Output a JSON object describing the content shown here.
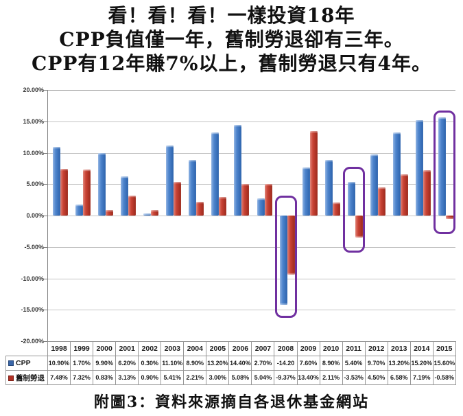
{
  "title": {
    "line1": "看！看！看！一樣投資18年",
    "line2": "CPP負值僅一年，舊制勞退卻有三年。",
    "line3": "CPP有12年賺7%以上，舊制勞退只有4年。"
  },
  "caption": "附圖3：資料來源摘自各退休基金網站",
  "chart_data": {
    "type": "bar",
    "categories": [
      "1998",
      "1999",
      "2000",
      "2001",
      "2002",
      "2003",
      "2004",
      "2005",
      "2006",
      "2007",
      "2008",
      "2009",
      "2010",
      "2011",
      "2012",
      "2013",
      "2014",
      "2015"
    ],
    "series": [
      {
        "name": "CPP",
        "color": "#3f76c0",
        "values": [
          10.9,
          1.7,
          9.9,
          6.2,
          0.3,
          11.1,
          8.9,
          13.2,
          14.4,
          2.7,
          -14.2,
          7.6,
          8.9,
          5.4,
          9.7,
          13.2,
          15.2,
          15.6
        ],
        "display": [
          "10.90%",
          "1.70%",
          "9.90%",
          "6.20%",
          "0.30%",
          "11.10%",
          "8.90%",
          "13.20%",
          "14.40%",
          "2.70%",
          "-14.20",
          "7.60%",
          "8.90%",
          "5.40%",
          "9.70%",
          "13.20%",
          "15.20%",
          "15.60%"
        ]
      },
      {
        "name": "舊制勞退",
        "color": "#bf3a2b",
        "values": [
          7.48,
          7.32,
          0.83,
          3.13,
          0.9,
          5.41,
          2.21,
          3.0,
          5.08,
          5.04,
          -9.37,
          13.4,
          2.11,
          -3.53,
          4.5,
          6.58,
          7.19,
          -0.58
        ],
        "display": [
          "7.48%",
          "7.32%",
          "0.83%",
          "3.13%",
          "0.90%",
          "5.41%",
          "2.21%",
          "3.00%",
          "5.08%",
          "5.04%",
          "-9.37%",
          "13.40%",
          "2.11%",
          "-3.53%",
          "4.50%",
          "6.58%",
          "7.19%",
          "-0.58%"
        ]
      }
    ],
    "ylim": [
      -20,
      20
    ],
    "ytick_step": 5,
    "ytick_labels": [
      "20.00%",
      "15.00%",
      "10.00%",
      "5.00%",
      "0.00%",
      "-5.00%",
      "-10.00%",
      "-15.00%",
      "-20.00%"
    ],
    "grid": true,
    "legend_position": "table-left",
    "highlight_color": "#7030a0",
    "highlights": [
      {
        "year": "2008",
        "top_pct": 3.2,
        "bottom_pct": -16.3
      },
      {
        "year": "2011",
        "top_pct": 7.8,
        "bottom_pct": -5.9
      },
      {
        "year": "2015",
        "top_pct": 16.7,
        "bottom_pct": -3.0
      }
    ]
  }
}
